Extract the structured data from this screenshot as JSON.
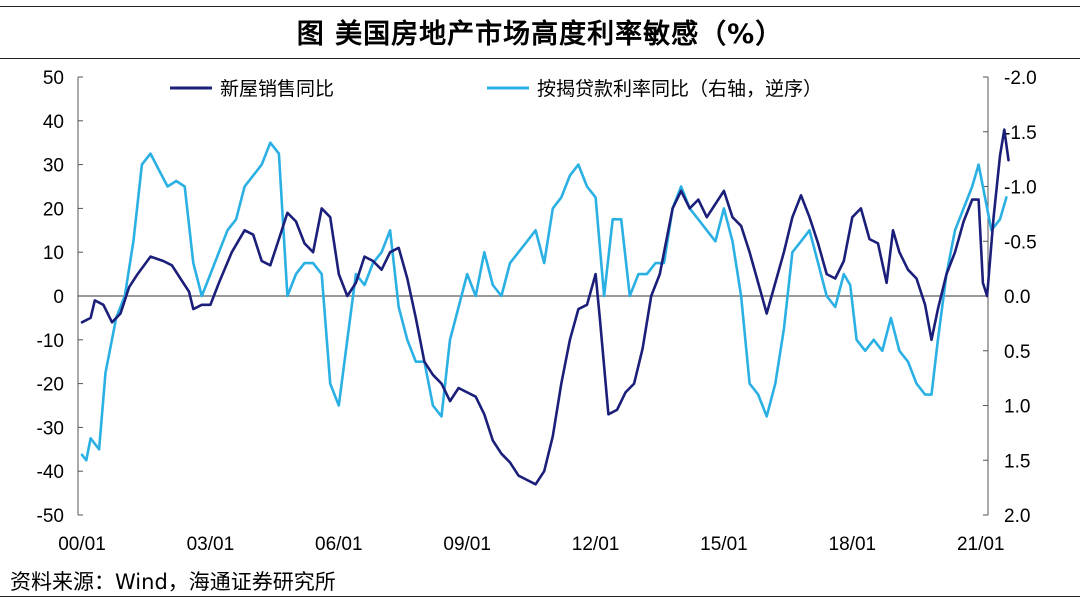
{
  "title": "图 美国房地产市场高度利率敏感（%）",
  "source": "资料来源：Wind，海通证券研究所",
  "colors": {
    "primary": "#1b1f7a",
    "secondary": "#2bb0e4",
    "axis": "#555555"
  },
  "chart_data": {
    "type": "line",
    "title": "图 美国房地产市场高度利率敏感（%）",
    "x_tick_labels": [
      "00/01",
      "03/01",
      "06/01",
      "09/01",
      "12/01",
      "15/01",
      "18/01",
      "21/01"
    ],
    "x_range": [
      2000.0,
      2021.17
    ],
    "y_left": {
      "range": [
        -50,
        50
      ],
      "ticks": [
        50,
        40,
        30,
        20,
        10,
        0,
        -10,
        -20,
        -30,
        -40,
        -50
      ]
    },
    "y_right": {
      "range": [
        -2.0,
        2.0
      ],
      "reversed": true,
      "ticks": [
        "-2.0",
        "-1.5",
        "-1.0",
        "-0.5",
        "0.0",
        "0.5",
        "1.0",
        "1.5",
        "2.0"
      ]
    },
    "legend_position": "top",
    "series": [
      {
        "name": "新屋销售同比",
        "axis": "left",
        "color": "#1b1f7a",
        "points": [
          [
            2000.0,
            -6
          ],
          [
            2000.2,
            -5
          ],
          [
            2000.3,
            -1
          ],
          [
            2000.5,
            -2
          ],
          [
            2000.7,
            -6
          ],
          [
            2000.9,
            -4
          ],
          [
            2001.1,
            2
          ],
          [
            2001.3,
            5
          ],
          [
            2001.6,
            9
          ],
          [
            2001.9,
            8
          ],
          [
            2002.1,
            7
          ],
          [
            2002.3,
            4
          ],
          [
            2002.5,
            1
          ],
          [
            2002.6,
            -3
          ],
          [
            2002.8,
            -2
          ],
          [
            2003.0,
            -2
          ],
          [
            2003.2,
            3
          ],
          [
            2003.5,
            10
          ],
          [
            2003.8,
            15
          ],
          [
            2004.0,
            14
          ],
          [
            2004.2,
            8
          ],
          [
            2004.4,
            7
          ],
          [
            2004.6,
            13
          ],
          [
            2004.8,
            19
          ],
          [
            2005.0,
            17
          ],
          [
            2005.2,
            12
          ],
          [
            2005.4,
            10
          ],
          [
            2005.6,
            20
          ],
          [
            2005.8,
            18
          ],
          [
            2006.0,
            5
          ],
          [
            2006.2,
            0
          ],
          [
            2006.4,
            3
          ],
          [
            2006.6,
            9
          ],
          [
            2006.8,
            8
          ],
          [
            2007.0,
            6
          ],
          [
            2007.2,
            10
          ],
          [
            2007.4,
            11
          ],
          [
            2007.6,
            4
          ],
          [
            2007.8,
            -5
          ],
          [
            2008.0,
            -15
          ],
          [
            2008.2,
            -18
          ],
          [
            2008.4,
            -20
          ],
          [
            2008.6,
            -24
          ],
          [
            2008.8,
            -21
          ],
          [
            2009.0,
            -22
          ],
          [
            2009.2,
            -23
          ],
          [
            2009.4,
            -27
          ],
          [
            2009.6,
            -33
          ],
          [
            2009.8,
            -36
          ],
          [
            2010.0,
            -38
          ],
          [
            2010.2,
            -41
          ],
          [
            2010.4,
            -42
          ],
          [
            2010.6,
            -43
          ],
          [
            2010.8,
            -40
          ],
          [
            2011.0,
            -32
          ],
          [
            2011.2,
            -20
          ],
          [
            2011.4,
            -10
          ],
          [
            2011.6,
            -3
          ],
          [
            2011.8,
            -2
          ],
          [
            2012.0,
            5
          ],
          [
            2012.1,
            -5
          ],
          [
            2012.3,
            -27
          ],
          [
            2012.5,
            -26
          ],
          [
            2012.7,
            -22
          ],
          [
            2012.9,
            -20
          ],
          [
            2013.1,
            -12
          ],
          [
            2013.3,
            0
          ],
          [
            2013.5,
            5
          ],
          [
            2013.8,
            20
          ],
          [
            2014.0,
            24
          ],
          [
            2014.2,
            20
          ],
          [
            2014.4,
            22
          ],
          [
            2014.6,
            18
          ],
          [
            2014.8,
            21
          ],
          [
            2015.0,
            24
          ],
          [
            2015.2,
            18
          ],
          [
            2015.4,
            16
          ],
          [
            2015.6,
            10
          ],
          [
            2015.8,
            3
          ],
          [
            2016.0,
            -4
          ],
          [
            2016.2,
            3
          ],
          [
            2016.4,
            10
          ],
          [
            2016.6,
            18
          ],
          [
            2016.8,
            23
          ],
          [
            2017.0,
            18
          ],
          [
            2017.2,
            12
          ],
          [
            2017.4,
            5
          ],
          [
            2017.6,
            4
          ],
          [
            2017.8,
            8
          ],
          [
            2018.0,
            18
          ],
          [
            2018.2,
            20
          ],
          [
            2018.4,
            13
          ],
          [
            2018.6,
            12
          ],
          [
            2018.8,
            3
          ],
          [
            2018.95,
            15
          ],
          [
            2019.1,
            10
          ],
          [
            2019.3,
            6
          ],
          [
            2019.5,
            4
          ],
          [
            2019.7,
            -2
          ],
          [
            2019.85,
            -10
          ],
          [
            2020.0,
            -3
          ],
          [
            2020.2,
            5
          ],
          [
            2020.4,
            10
          ],
          [
            2020.6,
            17
          ],
          [
            2020.8,
            22
          ],
          [
            2020.95,
            22
          ],
          [
            2021.05,
            3
          ],
          [
            2021.15,
            0
          ],
          [
            2021.3,
            18
          ],
          [
            2021.45,
            32
          ],
          [
            2021.55,
            38
          ],
          [
            2021.65,
            31
          ]
        ]
      },
      {
        "name": "按揭贷款利率同比（右轴，逆序）",
        "axis": "right",
        "color": "#2bb0e4",
        "points": [
          [
            2000.0,
            1.45
          ],
          [
            2000.1,
            1.5
          ],
          [
            2000.2,
            1.3
          ],
          [
            2000.4,
            1.4
          ],
          [
            2000.55,
            0.7
          ],
          [
            2000.8,
            0.2
          ],
          [
            2001.0,
            0.0
          ],
          [
            2001.2,
            -0.5
          ],
          [
            2001.4,
            -1.2
          ],
          [
            2001.6,
            -1.3
          ],
          [
            2001.8,
            -1.15
          ],
          [
            2002.0,
            -1.0
          ],
          [
            2002.2,
            -1.05
          ],
          [
            2002.4,
            -1.0
          ],
          [
            2002.6,
            -0.3
          ],
          [
            2002.8,
            0.0
          ],
          [
            2003.0,
            -0.2
          ],
          [
            2003.2,
            -0.4
          ],
          [
            2003.4,
            -0.6
          ],
          [
            2003.6,
            -0.7
          ],
          [
            2003.8,
            -1.0
          ],
          [
            2004.0,
            -1.1
          ],
          [
            2004.2,
            -1.2
          ],
          [
            2004.4,
            -1.4
          ],
          [
            2004.6,
            -1.3
          ],
          [
            2004.8,
            0.0
          ],
          [
            2005.0,
            -0.2
          ],
          [
            2005.2,
            -0.3
          ],
          [
            2005.4,
            -0.3
          ],
          [
            2005.6,
            -0.2
          ],
          [
            2005.8,
            0.8
          ],
          [
            2006.0,
            1.0
          ],
          [
            2006.2,
            0.4
          ],
          [
            2006.4,
            -0.2
          ],
          [
            2006.6,
            -0.1
          ],
          [
            2006.8,
            -0.3
          ],
          [
            2007.0,
            -0.4
          ],
          [
            2007.2,
            -0.6
          ],
          [
            2007.4,
            0.1
          ],
          [
            2007.6,
            0.4
          ],
          [
            2007.8,
            0.6
          ],
          [
            2008.0,
            0.6
          ],
          [
            2008.2,
            1.0
          ],
          [
            2008.4,
            1.1
          ],
          [
            2008.6,
            0.4
          ],
          [
            2008.8,
            0.1
          ],
          [
            2009.0,
            -0.2
          ],
          [
            2009.2,
            0.0
          ],
          [
            2009.4,
            -0.4
          ],
          [
            2009.6,
            -0.1
          ],
          [
            2009.8,
            0.0
          ],
          [
            2010.0,
            -0.3
          ],
          [
            2010.2,
            -0.4
          ],
          [
            2010.4,
            -0.5
          ],
          [
            2010.6,
            -0.6
          ],
          [
            2010.8,
            -0.3
          ],
          [
            2011.0,
            -0.8
          ],
          [
            2011.2,
            -0.9
          ],
          [
            2011.4,
            -1.1
          ],
          [
            2011.6,
            -1.2
          ],
          [
            2011.8,
            -1.0
          ],
          [
            2012.0,
            -0.9
          ],
          [
            2012.2,
            0.0
          ],
          [
            2012.4,
            -0.7
          ],
          [
            2012.6,
            -0.7
          ],
          [
            2012.8,
            0.0
          ],
          [
            2013.0,
            -0.2
          ],
          [
            2013.2,
            -0.2
          ],
          [
            2013.4,
            -0.3
          ],
          [
            2013.6,
            -0.3
          ],
          [
            2013.8,
            -0.8
          ],
          [
            2014.0,
            -1.0
          ],
          [
            2014.2,
            -0.8
          ],
          [
            2014.4,
            -0.7
          ],
          [
            2014.6,
            -0.6
          ],
          [
            2014.8,
            -0.5
          ],
          [
            2015.0,
            -0.8
          ],
          [
            2015.2,
            -0.5
          ],
          [
            2015.4,
            0.0
          ],
          [
            2015.6,
            0.8
          ],
          [
            2015.8,
            0.9
          ],
          [
            2016.0,
            1.1
          ],
          [
            2016.2,
            0.8
          ],
          [
            2016.4,
            0.3
          ],
          [
            2016.6,
            -0.4
          ],
          [
            2016.8,
            -0.5
          ],
          [
            2017.0,
            -0.6
          ],
          [
            2017.2,
            -0.3
          ],
          [
            2017.4,
            0.0
          ],
          [
            2017.6,
            0.1
          ],
          [
            2017.8,
            -0.2
          ],
          [
            2017.95,
            -0.1
          ],
          [
            2018.1,
            0.4
          ],
          [
            2018.3,
            0.5
          ],
          [
            2018.5,
            0.4
          ],
          [
            2018.7,
            0.5
          ],
          [
            2018.9,
            0.2
          ],
          [
            2019.1,
            0.5
          ],
          [
            2019.3,
            0.6
          ],
          [
            2019.5,
            0.8
          ],
          [
            2019.7,
            0.9
          ],
          [
            2019.85,
            0.9
          ],
          [
            2020.0,
            0.4
          ],
          [
            2020.2,
            -0.2
          ],
          [
            2020.4,
            -0.6
          ],
          [
            2020.6,
            -0.8
          ],
          [
            2020.8,
            -1.0
          ],
          [
            2020.95,
            -1.2
          ],
          [
            2021.1,
            -0.9
          ],
          [
            2021.25,
            -0.6
          ],
          [
            2021.45,
            -0.7
          ],
          [
            2021.6,
            -0.9
          ]
        ]
      }
    ]
  }
}
